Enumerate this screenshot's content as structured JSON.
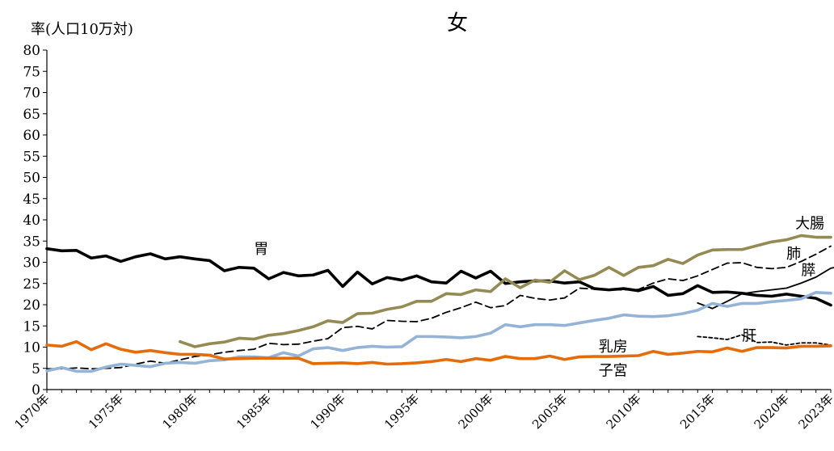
{
  "chart_data": {
    "type": "line",
    "title": "女",
    "ylabel": "率(人口10万対)",
    "xlabel": "",
    "ylim": [
      0,
      80
    ],
    "yticks": [
      0,
      5,
      10,
      15,
      20,
      25,
      30,
      35,
      40,
      45,
      50,
      55,
      60,
      65,
      70,
      75,
      80
    ],
    "xlim": [
      1970,
      2023
    ],
    "xtick_labels": [
      {
        "year": 1970,
        "label": "1970年"
      },
      {
        "year": 1975,
        "label": "1975年"
      },
      {
        "year": 1980,
        "label": "1980年"
      },
      {
        "year": 1985,
        "label": "1985年"
      },
      {
        "year": 1990,
        "label": "1990年"
      },
      {
        "year": 1995,
        "label": "1995年"
      },
      {
        "year": 2000,
        "label": "2000年"
      },
      {
        "year": 2005,
        "label": "2005年"
      },
      {
        "year": 2010,
        "label": "2010年"
      },
      {
        "year": 2015,
        "label": "2015年"
      },
      {
        "year": 2020,
        "label": "2020年"
      },
      {
        "year": 2023,
        "label": "2023年"
      }
    ],
    "grid": false,
    "legend": "none (series labelled inline)",
    "series": [
      {
        "name": "胃",
        "color": "#000000",
        "style": "solid-thick",
        "start": 1970,
        "values": [
          33.2,
          32.7,
          32.8,
          31.0,
          31.5,
          30.2,
          31.3,
          32.0,
          30.8,
          31.3,
          30.8,
          30.4,
          28.0,
          28.8,
          28.6,
          26.1,
          27.6,
          26.8,
          27.0,
          28.1,
          24.3,
          27.7,
          24.9,
          26.4,
          25.8,
          26.8,
          25.4,
          25.1,
          27.9,
          26.3,
          27.9,
          25.0,
          25.4,
          25.6,
          25.6,
          25.1,
          25.4,
          23.8,
          23.5,
          23.8,
          23.3,
          24.3,
          22.2,
          22.6,
          24.5,
          22.9,
          23.0,
          22.7,
          22.2,
          22.0,
          22.5,
          22.0,
          21.5,
          19.9
        ],
        "label_year": 1984,
        "label_value": 32.0
      },
      {
        "name": "大腸",
        "color": "#948a54",
        "style": "solid-thick",
        "start": 1979,
        "values": [
          11.3,
          10.1,
          10.8,
          11.2,
          12.1,
          11.9,
          12.8,
          13.2,
          13.9,
          14.8,
          16.2,
          15.8,
          17.9,
          18.0,
          18.9,
          19.5,
          20.8,
          20.8,
          22.6,
          22.4,
          23.5,
          23.1,
          26.1,
          24.0,
          25.8,
          25.3,
          28.0,
          25.9,
          26.9,
          28.8,
          26.9,
          28.8,
          29.2,
          30.7,
          29.7,
          31.7,
          32.9,
          33.0,
          33.0,
          33.9,
          34.8,
          35.3,
          36.3,
          35.9,
          35.9
        ],
        "label_year": 2020.6,
        "label_value": 38.0
      },
      {
        "name": "肺",
        "color": "#000000",
        "style": "dashed",
        "start": 1970,
        "values": [
          4.9,
          4.9,
          5.1,
          4.9,
          5.0,
          5.2,
          6.0,
          6.7,
          6.2,
          7.0,
          7.8,
          8.2,
          8.8,
          9.2,
          9.5,
          10.9,
          10.6,
          10.7,
          11.4,
          12.0,
          14.6,
          14.9,
          14.3,
          16.3,
          16.1,
          16.0,
          16.8,
          18.2,
          19.3,
          20.6,
          19.3,
          19.8,
          22.2,
          21.5,
          21.1,
          21.6,
          23.9,
          23.7,
          23.6,
          23.5,
          23.6,
          25.1,
          26.1,
          25.7,
          26.8,
          28.3,
          29.8,
          29.9,
          28.8,
          28.5,
          28.8,
          30.2,
          31.9,
          33.8
        ],
        "label_year": 2020.0,
        "label_value": 30.9
      },
      {
        "name": "膵",
        "color": "#000000",
        "style": "solid",
        "start": 2014,
        "values": [
          20.4,
          19.1,
          20.8,
          22.6,
          23.1,
          23.5,
          23.9,
          25.1,
          26.5,
          28.6,
          29.3
        ],
        "label_year": 2021.0,
        "label_value": 27.0
      },
      {
        "name": "乳房",
        "color": "#95b3d7",
        "style": "solid-thick",
        "start": 1970,
        "values": [
          4.4,
          5.2,
          4.3,
          4.3,
          5.3,
          6.0,
          5.7,
          5.4,
          6.2,
          6.4,
          6.2,
          6.8,
          7.0,
          7.7,
          7.7,
          7.5,
          8.7,
          7.9,
          9.6,
          9.9,
          9.2,
          9.9,
          10.2,
          10.0,
          10.1,
          12.5,
          12.5,
          12.4,
          12.2,
          12.5,
          13.3,
          15.3,
          14.8,
          15.3,
          15.3,
          15.1,
          15.7,
          16.3,
          16.8,
          17.6,
          17.3,
          17.2,
          17.4,
          17.9,
          18.7,
          20.3,
          19.6,
          20.3,
          20.3,
          20.7,
          21.0,
          21.4,
          22.9,
          22.7
        ],
        "label_year": 2007.3,
        "label_value": 9.0
      },
      {
        "name": "肝",
        "color": "#000000",
        "style": "dotted",
        "start": 2014,
        "values": [
          12.5,
          12.2,
          11.8,
          12.9,
          11.1,
          11.2,
          10.5,
          11.0,
          11.0,
          10.5
        ],
        "label_year": 2017.0,
        "label_value": 11.5
      },
      {
        "name": "子宮",
        "color": "#e46c0a",
        "style": "solid-thick",
        "start": 1970,
        "values": [
          10.5,
          10.2,
          11.3,
          9.4,
          10.8,
          9.5,
          8.8,
          9.2,
          8.7,
          8.3,
          8.3,
          8.1,
          7.2,
          7.3,
          7.4,
          7.4,
          7.4,
          7.4,
          6.1,
          6.2,
          6.3,
          6.1,
          6.4,
          6.0,
          6.1,
          6.3,
          6.6,
          7.1,
          6.6,
          7.3,
          6.9,
          7.8,
          7.3,
          7.3,
          7.9,
          7.1,
          7.7,
          7.8,
          7.8,
          7.9,
          8.0,
          9.0,
          8.3,
          8.6,
          9.0,
          8.9,
          9.8,
          9.0,
          9.9,
          9.9,
          9.8,
          10.2,
          10.2,
          10.3
        ],
        "label_year": 2007.3,
        "label_value": 3.3
      }
    ]
  }
}
